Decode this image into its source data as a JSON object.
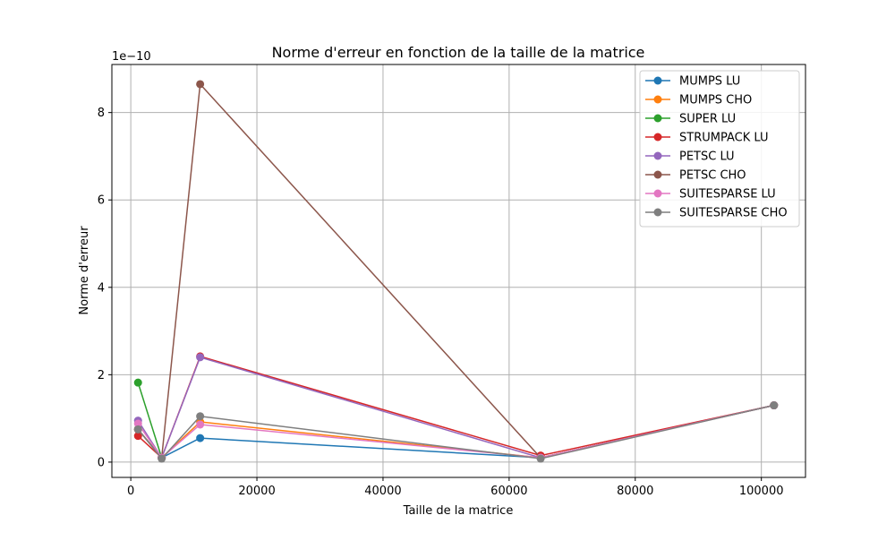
{
  "chart_data": {
    "type": "line",
    "title": "Norme d'erreur en fonction de la taille de la matrice",
    "xlabel": "Taille de la matrice",
    "ylabel": "Norme d'erreur",
    "y_offset_label": "1e−10",
    "xlim": [
      -3000,
      107000
    ],
    "ylim": [
      -0.35,
      9.1
    ],
    "x_ticks": [
      0,
      20000,
      40000,
      60000,
      80000,
      100000
    ],
    "x_tick_labels": [
      "0",
      "20000",
      "40000",
      "60000",
      "80000",
      "100000"
    ],
    "y_ticks": [
      0,
      2,
      4,
      6,
      8
    ],
    "y_tick_labels": [
      "0",
      "2",
      "4",
      "6",
      "8"
    ],
    "grid": true,
    "legend_position": "upper right",
    "x": [
      1150,
      4900,
      11000,
      65000,
      102000
    ],
    "series": [
      {
        "name": "MUMPS LU",
        "color": "#1f77b4",
        "values": [
          0.75,
          0.1,
          0.55,
          0.1,
          1.3
        ]
      },
      {
        "name": "MUMPS CHO",
        "color": "#ff7f0e",
        "values": [
          0.75,
          0.1,
          0.92,
          0.1,
          1.3
        ]
      },
      {
        "name": "SUPER LU",
        "color": "#2ca02c",
        "values": [
          1.82,
          0.1,
          null,
          null,
          null
        ]
      },
      {
        "name": "STRUMPACK LU",
        "color": "#d62728",
        "values": [
          0.6,
          0.1,
          2.42,
          0.15,
          1.3
        ]
      },
      {
        "name": "PETSC LU",
        "color": "#9467bd",
        "values": [
          0.95,
          0.1,
          2.4,
          0.1,
          1.3
        ]
      },
      {
        "name": "PETSC CHO",
        "color": "#8c564b",
        "values": [
          0.75,
          0.1,
          8.65,
          0.1,
          1.3
        ]
      },
      {
        "name": "SUITESPARSE LU",
        "color": "#e377c2",
        "values": [
          0.88,
          0.1,
          0.86,
          0.1,
          1.3
        ]
      },
      {
        "name": "SUITESPARSE CHO",
        "color": "#7f7f7f",
        "values": [
          0.75,
          0.08,
          1.05,
          0.08,
          1.3
        ]
      }
    ]
  }
}
